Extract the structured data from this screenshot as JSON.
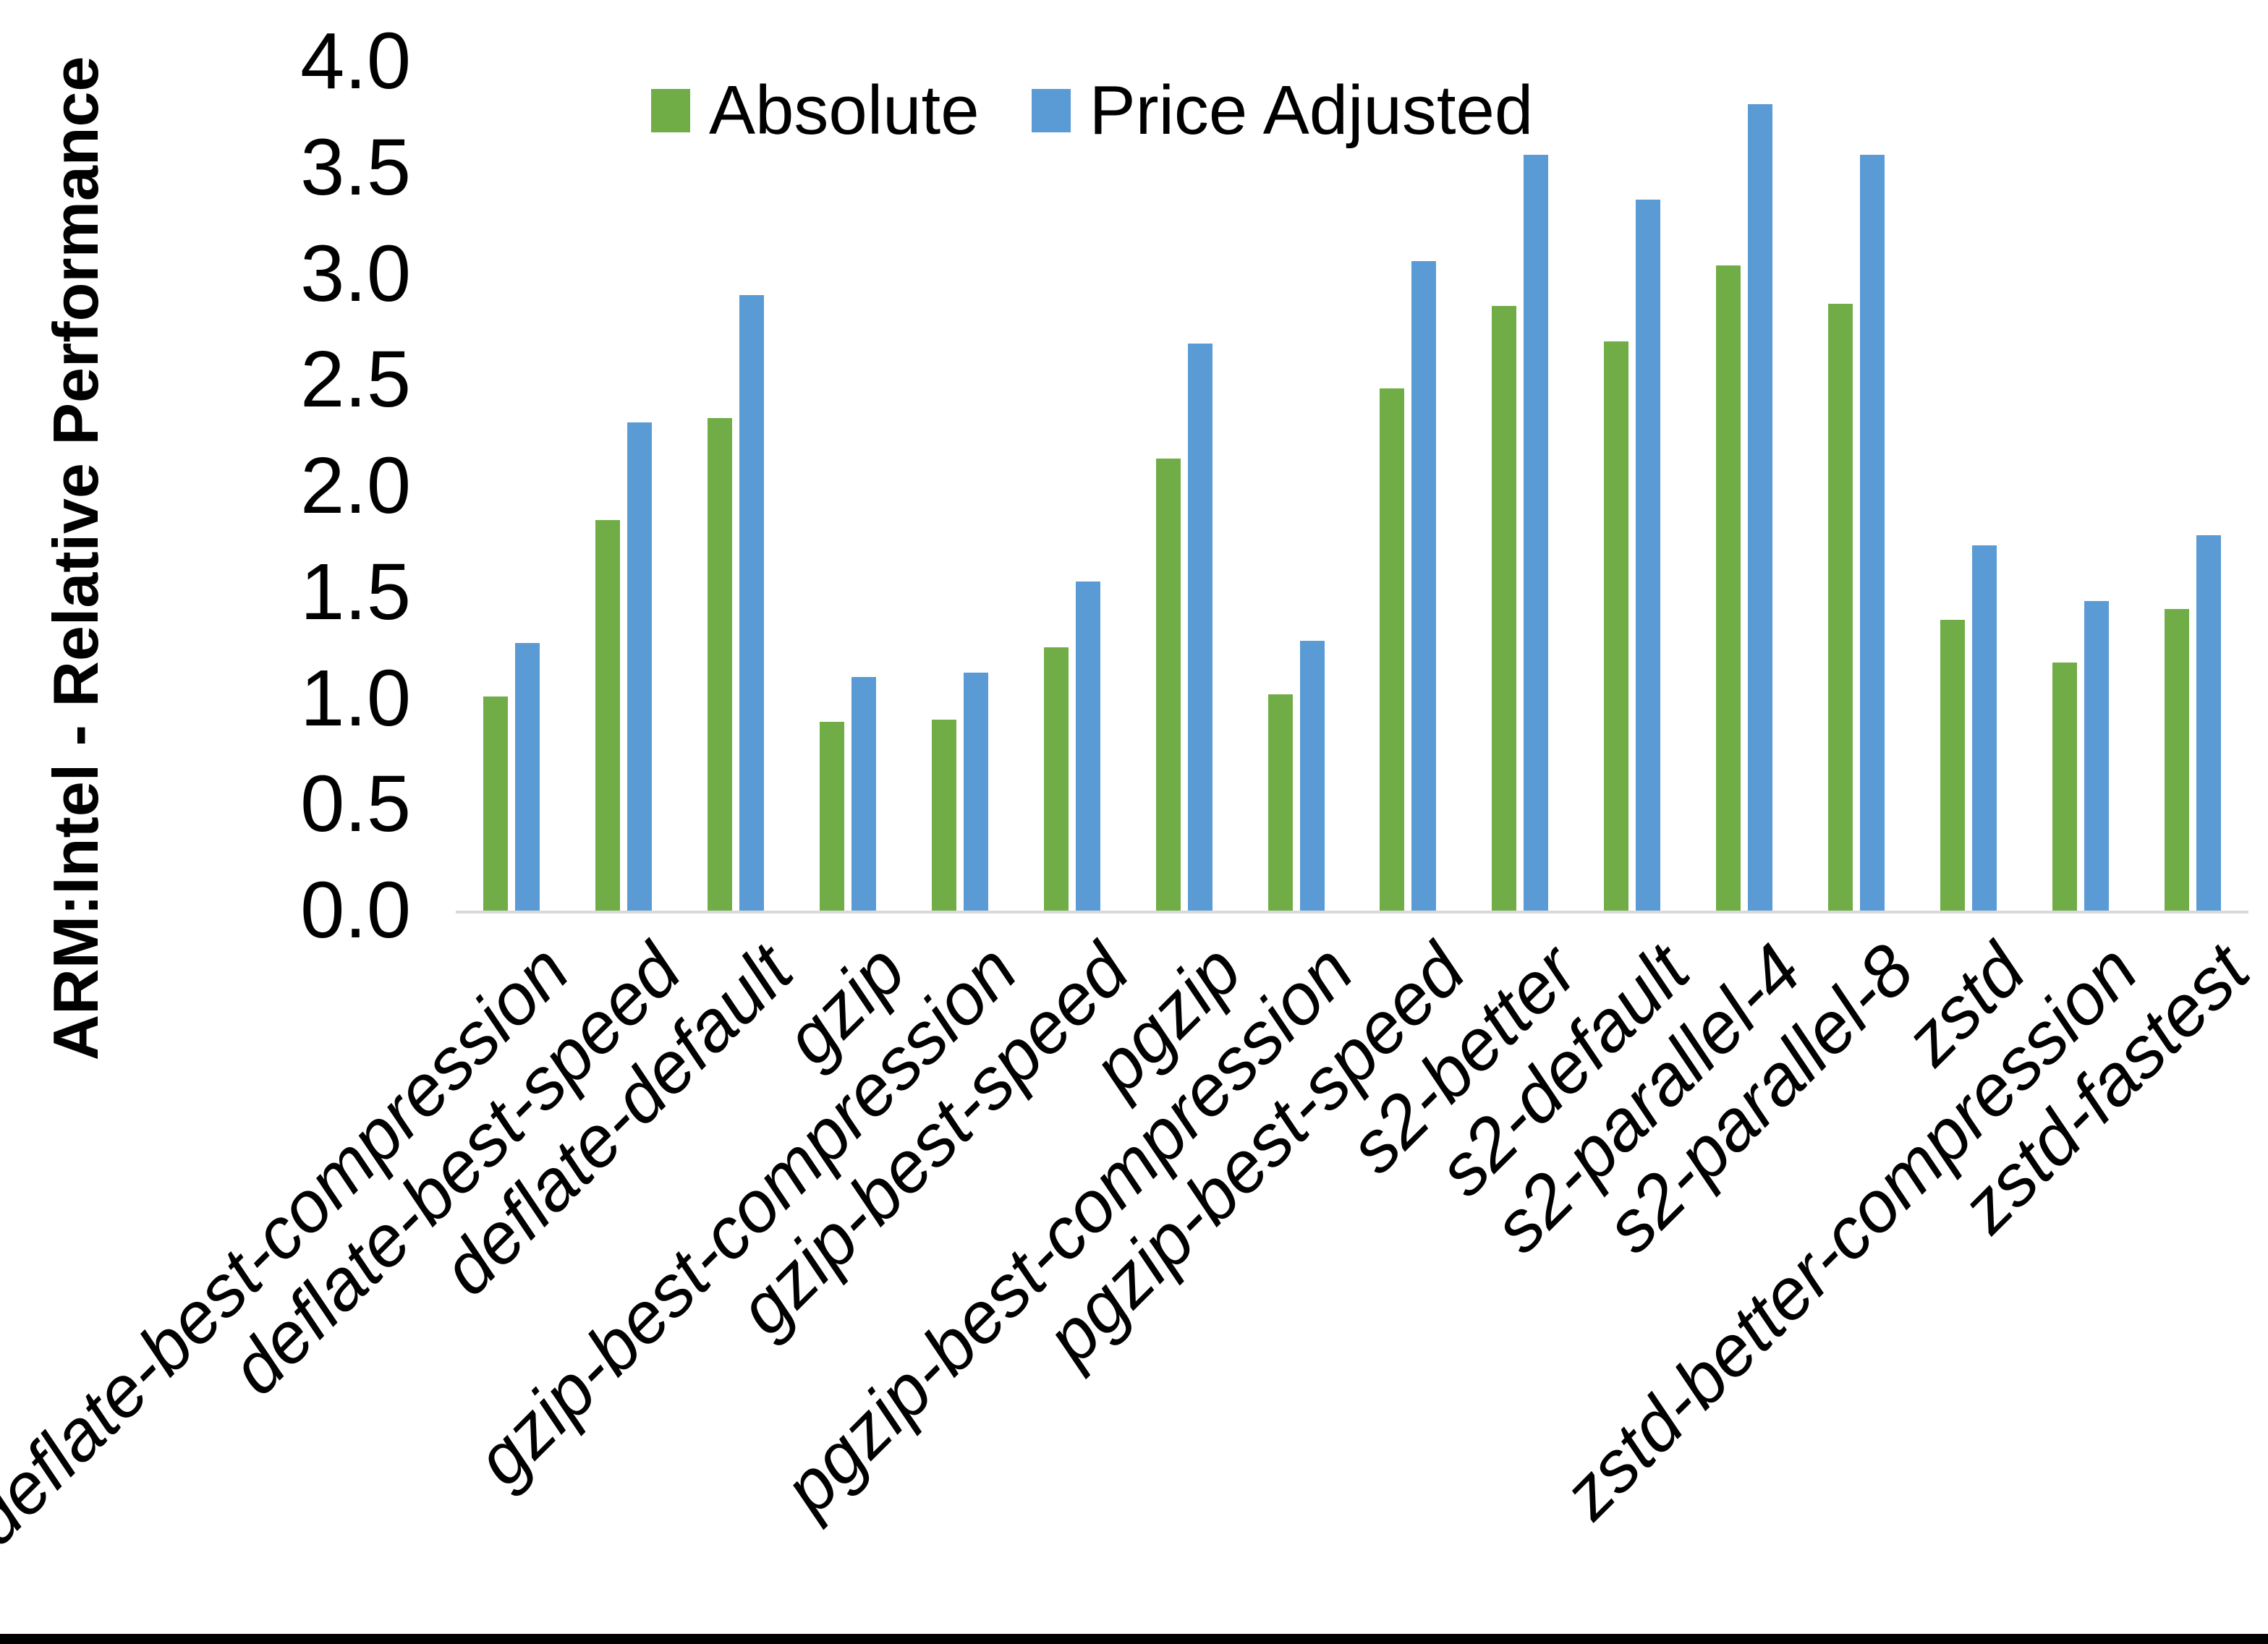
{
  "chart_data": {
    "type": "bar",
    "title": "",
    "ylabel": "ARM:Intel - Relative Performance",
    "xlabel": "",
    "ylim": [
      0.0,
      4.0
    ],
    "ytick_labels": [
      "4.0",
      "3.5",
      "3.0",
      "2.5",
      "2.0",
      "1.5",
      "1.0",
      "0.5",
      "0.0"
    ],
    "grid": false,
    "legend_position": "top-center",
    "categories": [
      "deflate-best-compression",
      "deflate-best-speed",
      "deflate-default",
      "gzip",
      "gzip-best-compression",
      "gzip-best-speed",
      "pgzip",
      "pgzip-best-compression",
      "pgzip-best-speed",
      "s2-better",
      "s2-default",
      "s2-parallel-4",
      "s2-parallel-8",
      "zstd",
      "zstd-better-compression",
      "zstd-fastest"
    ],
    "series": [
      {
        "name": "Absolute",
        "color": "#70AD47",
        "values": [
          1.01,
          1.84,
          2.32,
          0.89,
          0.9,
          1.24,
          2.13,
          1.02,
          2.46,
          2.85,
          2.68,
          3.04,
          2.86,
          1.37,
          1.17,
          1.42
        ]
      },
      {
        "name": "Price Adjusted",
        "color": "#5B9BD5",
        "values": [
          1.26,
          2.3,
          2.9,
          1.1,
          1.12,
          1.55,
          2.67,
          1.27,
          3.06,
          3.56,
          3.35,
          3.8,
          3.56,
          1.72,
          1.46,
          1.77
        ]
      }
    ],
    "colors": {
      "axis_line": "#D9D9D9",
      "text": "#000000",
      "background": "#FFFFFF",
      "bottom_bar": "#000000"
    }
  }
}
